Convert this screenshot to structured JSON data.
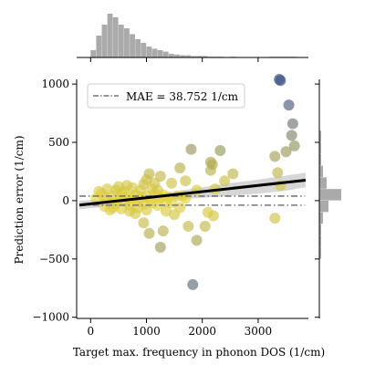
{
  "chart_data": {
    "type": "scatter",
    "xlabel": "Target max. frequency in phonon DOS (1/cm)",
    "ylabel": "Prediction error (1/cm)",
    "xlim": [
      -250,
      3900
    ],
    "ylim": [
      -1010,
      1040
    ],
    "xticks": [
      0,
      1000,
      2000,
      3000
    ],
    "xtick_labels": [
      "0",
      "1000",
      "2000",
      "3000"
    ],
    "yticks": [
      -1000,
      -500,
      0,
      500,
      1000
    ],
    "ytick_labels": [
      "−1000",
      "−500",
      "0",
      "500",
      "1000"
    ],
    "grid": false,
    "legend": {
      "position": "top-left",
      "entries": [
        "MAE = 38.752 1/cm"
      ]
    },
    "mae_lines": [
      38.752,
      -38.752
    ],
    "colors": {
      "low_error": "#e6d43c",
      "high_error": "#3b4f82",
      "regression_line": "#000000",
      "confidence_band": "#cccccc",
      "mae_line": "#777777",
      "histogram": "#aaaaaa"
    },
    "regression": {
      "x": [
        -200,
        3850
      ],
      "y": [
        -38,
        175
      ]
    },
    "confidence_band": {
      "x": [
        -200,
        500,
        1000,
        1500,
        2000,
        2500,
        3000,
        3500,
        3850
      ],
      "lower": [
        -75,
        -40,
        -15,
        10,
        25,
        40,
        60,
        85,
        115
      ],
      "upper": [
        0,
        20,
        45,
        80,
        115,
        150,
        180,
        215,
        240
      ]
    },
    "x_histogram": {
      "bins": [
        0,
        100,
        200,
        300,
        400,
        500,
        600,
        700,
        800,
        900,
        1000,
        1100,
        1200,
        1300,
        1400,
        1500,
        1600,
        1700,
        1800,
        1900,
        2000,
        2100,
        2200,
        2300,
        2400,
        2500,
        2600,
        2700,
        2800,
        2900,
        3000,
        3100,
        3200,
        3300,
        3400,
        3500,
        3600,
        3700
      ],
      "counts": [
        10,
        30,
        45,
        60,
        55,
        45,
        40,
        32,
        25,
        20,
        15,
        12,
        10,
        8,
        5,
        4,
        3,
        3,
        2,
        2,
        2,
        1,
        1,
        1,
        0,
        1,
        0,
        0,
        0,
        0,
        0,
        0,
        1,
        1,
        1,
        1,
        1,
        0
      ]
    },
    "y_histogram": {
      "bins": [
        -500,
        -400,
        -300,
        -200,
        -100,
        0,
        100,
        200,
        300,
        400,
        500
      ],
      "counts": [
        1,
        1,
        1,
        2,
        5,
        12,
        4,
        2,
        1,
        1,
        1
      ]
    },
    "points": [
      {
        "x": 3380,
        "y": 1040
      },
      {
        "x": 3400,
        "y": 1030
      },
      {
        "x": 3550,
        "y": 820
      },
      {
        "x": 3620,
        "y": 660
      },
      {
        "x": 3600,
        "y": 560
      },
      {
        "x": 3650,
        "y": 470
      },
      {
        "x": 3300,
        "y": 380
      },
      {
        "x": 3500,
        "y": 420
      },
      {
        "x": 3350,
        "y": 240
      },
      {
        "x": 3300,
        "y": -150
      },
      {
        "x": 3400,
        "y": 130
      },
      {
        "x": 1830,
        "y": -720
      },
      {
        "x": 1800,
        "y": 440
      },
      {
        "x": 2320,
        "y": 430
      },
      {
        "x": 2150,
        "y": 330
      },
      {
        "x": 2150,
        "y": 260
      },
      {
        "x": 2180,
        "y": 310
      },
      {
        "x": 2230,
        "y": 100
      },
      {
        "x": 2200,
        "y": -130
      },
      {
        "x": 2050,
        "y": -220
      },
      {
        "x": 1900,
        "y": -340
      },
      {
        "x": 1750,
        "y": -220
      },
      {
        "x": 1700,
        "y": 170
      },
      {
        "x": 1600,
        "y": 280
      },
      {
        "x": 2550,
        "y": 230
      },
      {
        "x": 2400,
        "y": 170
      },
      {
        "x": 1250,
        "y": -400
      },
      {
        "x": 1050,
        "y": -280
      },
      {
        "x": 950,
        "y": -190
      },
      {
        "x": 1300,
        "y": -260
      },
      {
        "x": 1250,
        "y": 210
      },
      {
        "x": 1450,
        "y": 150
      },
      {
        "x": 1500,
        "y": -120
      },
      {
        "x": 1150,
        "y": 150
      },
      {
        "x": 1050,
        "y": 230
      },
      {
        "x": 1000,
        "y": 180
      },
      {
        "x": 1900,
        "y": 90
      },
      {
        "x": 2100,
        "y": -100
      },
      {
        "x": 1650,
        "y": 40
      },
      {
        "x": 150,
        "y": 80
      },
      {
        "x": 200,
        "y": 60
      },
      {
        "x": 250,
        "y": 30
      },
      {
        "x": 300,
        "y": 10
      },
      {
        "x": 350,
        "y": -20
      },
      {
        "x": 400,
        "y": 40
      },
      {
        "x": 450,
        "y": -30
      },
      {
        "x": 500,
        "y": 20
      },
      {
        "x": 550,
        "y": 60
      },
      {
        "x": 600,
        "y": -10
      },
      {
        "x": 650,
        "y": 30
      },
      {
        "x": 700,
        "y": -40
      },
      {
        "x": 750,
        "y": 20
      },
      {
        "x": 800,
        "y": 50
      },
      {
        "x": 850,
        "y": -10
      },
      {
        "x": 900,
        "y": 30
      },
      {
        "x": 950,
        "y": -30
      },
      {
        "x": 1000,
        "y": 40
      },
      {
        "x": 1050,
        "y": 10
      },
      {
        "x": 1100,
        "y": -20
      },
      {
        "x": 1150,
        "y": 60
      },
      {
        "x": 1200,
        "y": -40
      },
      {
        "x": 1250,
        "y": 20
      },
      {
        "x": 1300,
        "y": 50
      },
      {
        "x": 1350,
        "y": -10
      },
      {
        "x": 1400,
        "y": 30
      },
      {
        "x": 1450,
        "y": -20
      },
      {
        "x": 1550,
        "y": 40
      },
      {
        "x": 1600,
        "y": -60
      },
      {
        "x": 1700,
        "y": 20
      },
      {
        "x": 300,
        "y": 100
      },
      {
        "x": 450,
        "y": 90
      },
      {
        "x": 600,
        "y": 80
      },
      {
        "x": 750,
        "y": 110
      },
      {
        "x": 900,
        "y": 90
      },
      {
        "x": 350,
        "y": -80
      },
      {
        "x": 550,
        "y": -70
      },
      {
        "x": 700,
        "y": -90
      },
      {
        "x": 850,
        "y": -60
      },
      {
        "x": 1000,
        "y": -80
      },
      {
        "x": 250,
        "y": -50
      },
      {
        "x": 400,
        "y": -60
      },
      {
        "x": 650,
        "y": 130
      },
      {
        "x": 800,
        "y": -110
      },
      {
        "x": 1100,
        "y": 100
      },
      {
        "x": 1200,
        "y": 90
      },
      {
        "x": 1350,
        "y": -90
      },
      {
        "x": 100,
        "y": 20
      },
      {
        "x": 500,
        "y": 120
      },
      {
        "x": 950,
        "y": 140
      }
    ]
  }
}
